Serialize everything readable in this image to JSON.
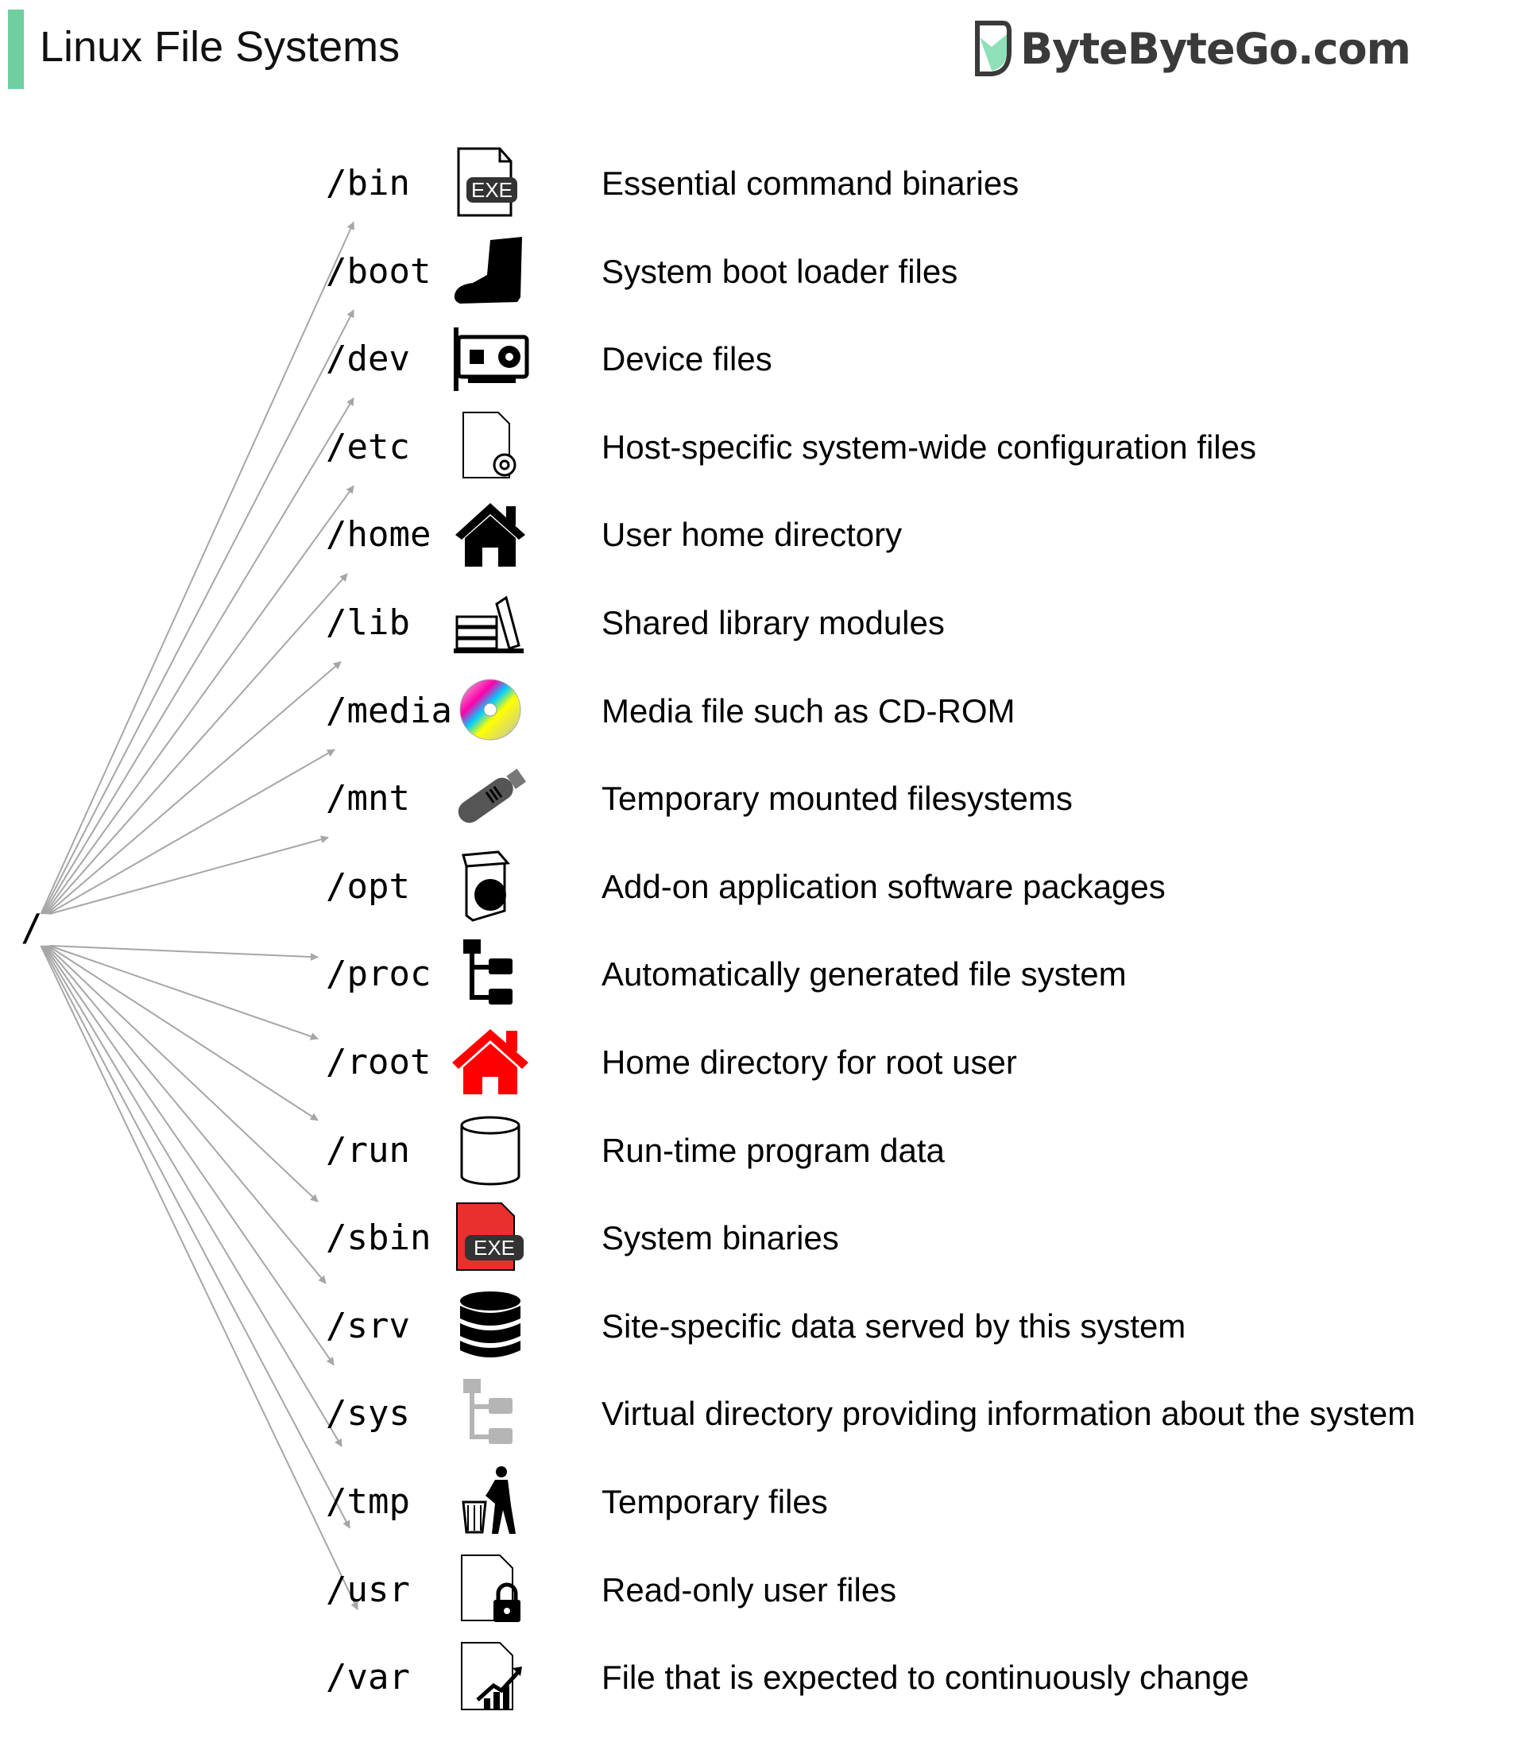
{
  "title": "Linux File Systems",
  "brand": {
    "name": "ByteByteGo.com",
    "accent_color": "#6fcf9f"
  },
  "root_label": "/",
  "arrow_color": "#a6a6a6",
  "directories": [
    {
      "path": "/bin",
      "icon": "exe-file-icon",
      "description": "Essential command binaries"
    },
    {
      "path": "/boot",
      "icon": "boot-icon",
      "description": "System boot loader files"
    },
    {
      "path": "/dev",
      "icon": "graphics-card-icon",
      "description": "Device files"
    },
    {
      "path": "/etc",
      "icon": "config-file-icon",
      "description": "Host-specific system-wide configuration files"
    },
    {
      "path": "/home",
      "icon": "home-icon",
      "description": "User home directory"
    },
    {
      "path": "/lib",
      "icon": "books-icon",
      "description": "Shared library modules"
    },
    {
      "path": "/media",
      "icon": "cd-rom-icon",
      "description": "Media file such as CD-ROM"
    },
    {
      "path": "/mnt",
      "icon": "usb-drive-icon",
      "description": "Temporary mounted filesystems"
    },
    {
      "path": "/opt",
      "icon": "software-package-icon",
      "description": "Add-on application software packages"
    },
    {
      "path": "/proc",
      "icon": "folder-tree-icon",
      "description": "Automatically generated file system"
    },
    {
      "path": "/root",
      "icon": "red-home-icon",
      "description": "Home directory for root user"
    },
    {
      "path": "/run",
      "icon": "cylinder-icon",
      "description": "Run-time program data"
    },
    {
      "path": "/sbin",
      "icon": "red-exe-file-icon",
      "description": "System binaries"
    },
    {
      "path": "/srv",
      "icon": "database-icon",
      "description": "Site-specific data served by this system"
    },
    {
      "path": "/sys",
      "icon": "gray-folder-tree-icon",
      "description": "Virtual directory providing information about the system"
    },
    {
      "path": "/tmp",
      "icon": "trash-icon",
      "description": "Temporary files"
    },
    {
      "path": "/usr",
      "icon": "locked-file-icon",
      "description": "Read-only user files"
    },
    {
      "path": "/var",
      "icon": "chart-file-icon",
      "description": "File that is expected to continuously change"
    }
  ],
  "exe_label": "EXE"
}
